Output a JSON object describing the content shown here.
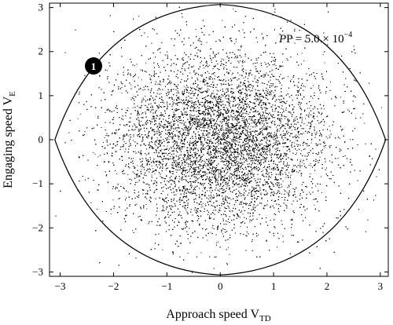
{
  "chart_data": {
    "type": "scatter",
    "xlabel": "Approach speed V",
    "xlabel_sub": "TD",
    "ylabel": "Engaging speed V",
    "ylabel_sub": "E",
    "xlim": [
      -3.2,
      3.15
    ],
    "ylim": [
      -3.1,
      3.1
    ],
    "x_ticks": [
      -3,
      -2,
      -1,
      0,
      1,
      2,
      3
    ],
    "y_ticks": [
      -3,
      -2,
      -1,
      0,
      1,
      2,
      3
    ],
    "x_tick_labels": [
      "−3",
      "−2",
      "−1",
      "0",
      "1",
      "2",
      "3"
    ],
    "y_tick_labels": [
      "−3",
      "−2",
      "−1",
      "0",
      "1",
      "2",
      "3"
    ],
    "grid": false,
    "boundary": {
      "description": "four concave arcs meeting at the axis intercepts",
      "x_intercepts": [
        -3.1,
        3.1
      ],
      "y_intercepts": [
        -3.07,
        3.07
      ]
    },
    "scatter": {
      "distribution": "standard bivariate normal",
      "mean": [
        0,
        0
      ],
      "std": [
        1,
        1
      ],
      "approx_points": 20000,
      "color": "#000000"
    },
    "annotations": [
      {
        "text": "P = 5.0 × 10",
        "superscript": "−4",
        "x": 1.15,
        "y": 2.3
      },
      {
        "text": "1",
        "kind": "circled-marker",
        "x": -2.28,
        "y": 1.65
      }
    ]
  }
}
